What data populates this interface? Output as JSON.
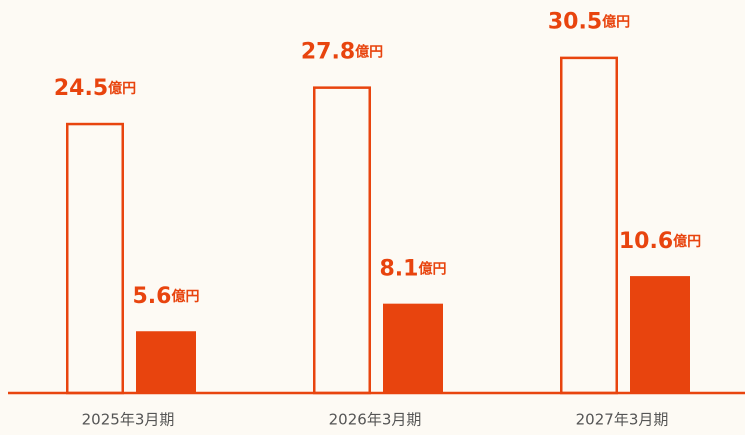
{
  "chart_data": {
    "type": "bar",
    "categories": [
      "2025年3月期",
      "2026年3月期",
      "2027年3月期"
    ],
    "series": [
      {
        "color": "#e8440e",
        "style": "outline",
        "values": [
          24.5,
          27.8,
          30.5
        ],
        "value_labels": [
          "24.5億円",
          "27.8億円",
          "30.5億円"
        ]
      },
      {
        "color": "#e8440e",
        "style": "filled",
        "values": [
          5.6,
          8.1,
          10.6
        ],
        "value_labels": [
          "5.6億円",
          "8.1億円",
          "10.6億円"
        ]
      }
    ],
    "ylim": [
      0,
      35
    ]
  }
}
